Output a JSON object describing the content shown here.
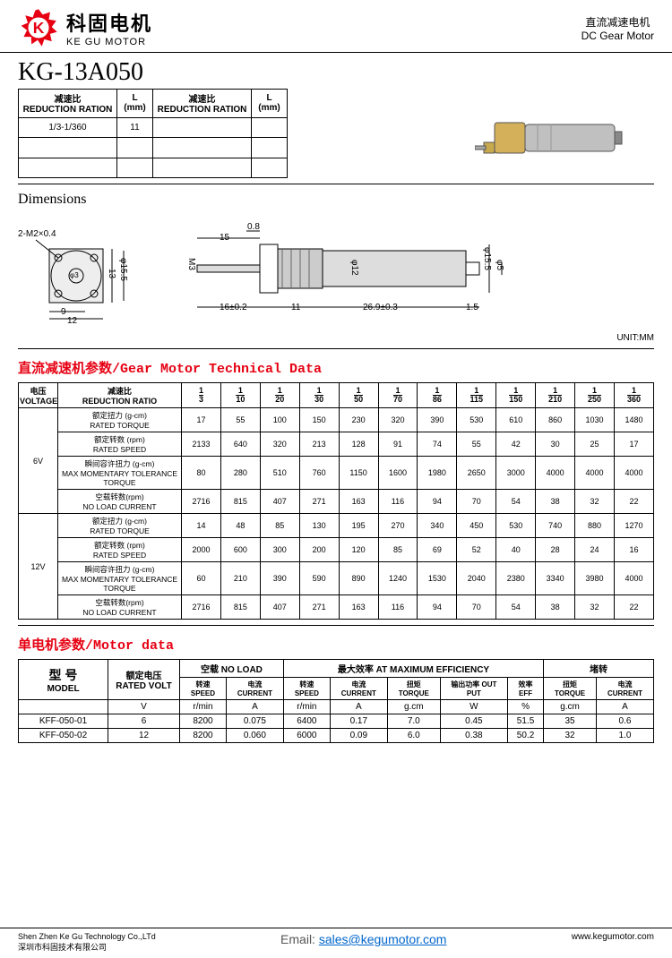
{
  "brand": {
    "cn": "科固电机",
    "en": "KE GU MOTOR"
  },
  "header_right": {
    "cn": "直流减速电机",
    "en": "DC  Gear Motor"
  },
  "model": "KG-13A050",
  "logo_color": "#e60012",
  "ratio_table": {
    "headers": [
      {
        "cn": "减速比",
        "en": "REDUCTION RATION"
      },
      {
        "cn": "L",
        "en": "(mm)"
      },
      {
        "cn": "减速比",
        "en": "REDUCTION RATION"
      },
      {
        "cn": "L",
        "en": "(mm)"
      }
    ],
    "rows": [
      [
        "1/3-1/360",
        "11",
        "",
        ""
      ],
      [
        "",
        "",
        "",
        ""
      ],
      [
        "",
        "",
        "",
        ""
      ]
    ]
  },
  "dimensions": {
    "title": "Dimensions",
    "unit": "UNIT:MM",
    "face": {
      "hole": "2-M2×0.4",
      "d_inner": "φ3",
      "h": "13",
      "d_outer": "φ15.5",
      "w1": "9",
      "w2": "12"
    },
    "side": {
      "shaft_d": "M3",
      "flat": "0.8",
      "shaft_l": "15",
      "flange": "16±0.2",
      "gearbox": "11",
      "body_d": "φ12",
      "motor_l": "26.9±0.3",
      "term": "1.5",
      "rear_d": "φ5",
      "rear_od": "φ15.5"
    }
  },
  "tech_data": {
    "title_cn": "直流减速机参数",
    "title_en": "/Gear Motor Technical Data",
    "col_voltage": {
      "cn": "电压",
      "en": "VOLTAGE"
    },
    "col_ratio_hdr": {
      "cn": "减速比",
      "en": "REDUCTION RATIO"
    },
    "ratios_num": [
      "1",
      "1",
      "1",
      "1",
      "1",
      "1",
      "1",
      "1",
      "1",
      "1",
      "1",
      "1"
    ],
    "ratios_den": [
      "3",
      "10",
      "20",
      "30",
      "50",
      "70",
      "86",
      "115",
      "150",
      "210",
      "250",
      "360"
    ],
    "row_labels": [
      {
        "cn": "额定扭力 (g-cm)",
        "en": "RATED TORQUE"
      },
      {
        "cn": "额定转数 (rpm)",
        "en": "RATED SPEED"
      },
      {
        "cn": "瞬间容许扭力 (g-cm)",
        "en": "MAX MOMENTARY TOLERANCE TORQUE"
      },
      {
        "cn": "空载转数(rpm)",
        "en": "NO LOAD CURRENT"
      }
    ],
    "voltages": [
      "6V",
      "12V"
    ],
    "data_6v": [
      [
        "17",
        "55",
        "100",
        "150",
        "230",
        "320",
        "390",
        "530",
        "610",
        "860",
        "1030",
        "1480"
      ],
      [
        "2133",
        "640",
        "320",
        "213",
        "128",
        "91",
        "74",
        "55",
        "42",
        "30",
        "25",
        "17"
      ],
      [
        "80",
        "280",
        "510",
        "760",
        "1150",
        "1600",
        "1980",
        "2650",
        "3000",
        "4000",
        "4000",
        "4000"
      ],
      [
        "2716",
        "815",
        "407",
        "271",
        "163",
        "116",
        "94",
        "70",
        "54",
        "38",
        "32",
        "22"
      ]
    ],
    "data_12v": [
      [
        "14",
        "48",
        "85",
        "130",
        "195",
        "270",
        "340",
        "450",
        "530",
        "740",
        "880",
        "1270"
      ],
      [
        "2000",
        "600",
        "300",
        "200",
        "120",
        "85",
        "69",
        "52",
        "40",
        "28",
        "24",
        "16"
      ],
      [
        "60",
        "210",
        "390",
        "590",
        "890",
        "1240",
        "1530",
        "2040",
        "2380",
        "3340",
        "3980",
        "4000"
      ],
      [
        "2716",
        "815",
        "407",
        "271",
        "163",
        "116",
        "94",
        "70",
        "54",
        "38",
        "32",
        "22"
      ]
    ]
  },
  "motor_data": {
    "title_cn": "单电机参数",
    "title_en": "/Motor data",
    "group_headers": [
      {
        "cn": "型 号",
        "en": "MODEL"
      },
      {
        "cn": "额定电压",
        "en": "RATED VOLT"
      },
      {
        "cn": "空载",
        "en": "NO LOAD"
      },
      {
        "cn": "最大效率",
        "en": "AT MAXIMUM EFFICIENCY"
      },
      {
        "cn": "堵转",
        "en": ""
      }
    ],
    "sub_headers": [
      {
        "label": "",
        "unit": ""
      },
      {
        "label": "",
        "unit": "V"
      },
      {
        "label": "转速 SPEED",
        "unit": "r/min"
      },
      {
        "label": "电流 CURRENT",
        "unit": "A"
      },
      {
        "label": "转速 SPEED",
        "unit": "r/min"
      },
      {
        "label": "电流 CURRENT",
        "unit": "A"
      },
      {
        "label": "扭矩 TORQUE",
        "unit": "g.cm"
      },
      {
        "label": "输出功率 OUT PUT",
        "unit": "W"
      },
      {
        "label": "效率 EFF",
        "unit": "%"
      },
      {
        "label": "扭矩 TORQUE",
        "unit": "g.cm"
      },
      {
        "label": "电流 CURRENT",
        "unit": "A"
      }
    ],
    "rows": [
      [
        "KFF-050-01",
        "6",
        "8200",
        "0.075",
        "6400",
        "0.17",
        "7.0",
        "0.45",
        "51.5",
        "35",
        "0.6"
      ],
      [
        "KFF-050-02",
        "12",
        "8200",
        "0.060",
        "6000",
        "0.09",
        "6.0",
        "0.38",
        "50.2",
        "32",
        "1.0"
      ]
    ]
  },
  "footer": {
    "co_en": "Shen Zhen Ke Gu Technology Co.,LTd",
    "co_cn": "深圳市科固技术有限公司",
    "email_label": "Email: ",
    "email": "sales@kegumotor.com",
    "web": "www.kegumotor.com"
  }
}
